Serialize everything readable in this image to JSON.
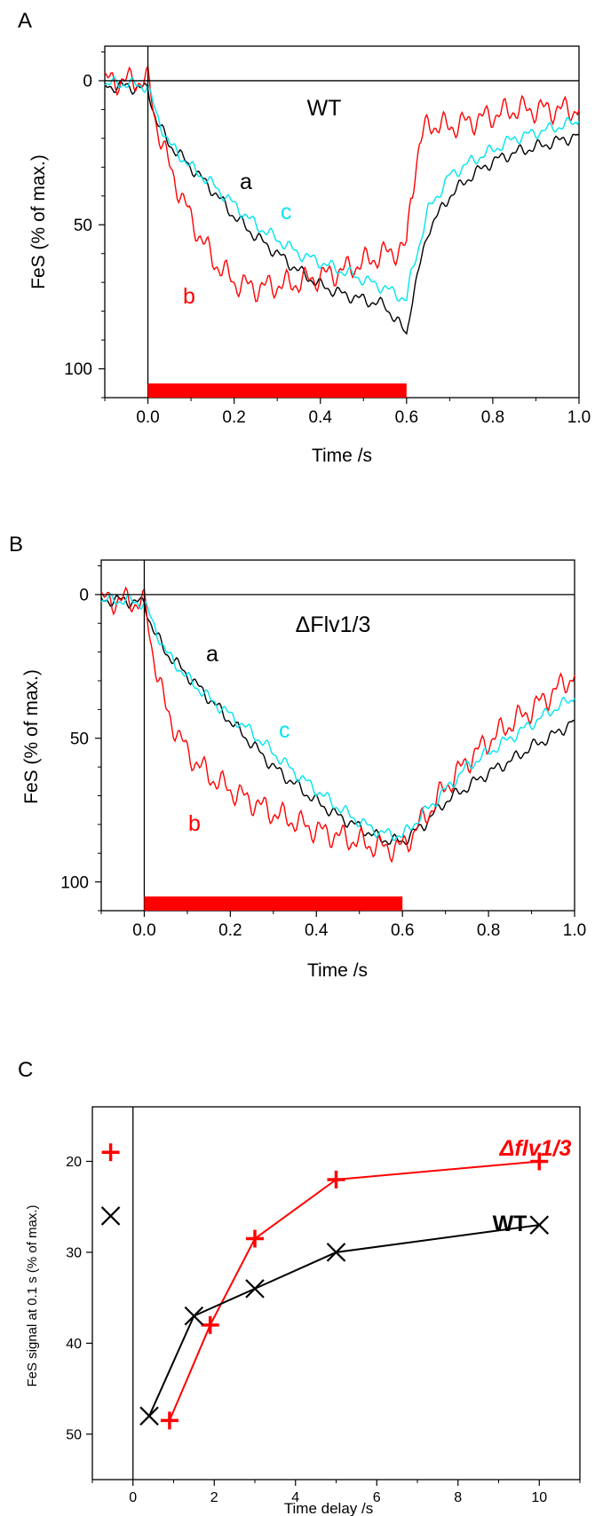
{
  "chart_data": [
    {
      "panel": "A",
      "type": "line",
      "annotation": "WT",
      "xlabel": "Time /s",
      "ylabel": "FeS (% of max.)",
      "xlim": [
        -0.1,
        1.0
      ],
      "ylim": [
        -12,
        110
      ],
      "y_inverted": true,
      "x_ticks": [
        0.0,
        0.2,
        0.4,
        0.6,
        0.8,
        1.0
      ],
      "x_tick_labels": [
        "0.0",
        "0.2",
        "0.4",
        "0.6",
        "0.8",
        "1.0"
      ],
      "y_ticks": [
        0,
        50,
        100
      ],
      "y_tick_labels": [
        "0",
        "50",
        "100"
      ],
      "light_bar": {
        "start": 0.0,
        "end": 0.6,
        "color": "#ff0000"
      },
      "series": [
        {
          "label": "a",
          "color": "#000000",
          "x": [
            -0.1,
            -0.05,
            0.0,
            0.02,
            0.05,
            0.1,
            0.15,
            0.2,
            0.25,
            0.3,
            0.35,
            0.4,
            0.45,
            0.5,
            0.55,
            0.6,
            0.61,
            0.65,
            0.7,
            0.75,
            0.8,
            0.85,
            0.9,
            0.95,
            1.0
          ],
          "y": [
            2,
            2,
            3,
            14,
            22,
            30,
            38,
            47,
            54,
            60,
            66,
            71,
            74,
            76,
            78,
            88,
            78,
            52,
            40,
            33,
            28,
            25,
            23,
            21,
            19
          ]
        },
        {
          "label": "b",
          "color": "#ff0000",
          "x": [
            -0.1,
            -0.05,
            0.0,
            0.02,
            0.05,
            0.1,
            0.15,
            0.2,
            0.25,
            0.3,
            0.35,
            0.4,
            0.45,
            0.5,
            0.55,
            0.6,
            0.61,
            0.63,
            0.65,
            0.7,
            0.75,
            0.8,
            0.85,
            0.9,
            0.95,
            1.0
          ],
          "y": [
            0,
            0,
            0,
            15,
            30,
            48,
            62,
            70,
            72,
            71,
            70,
            68,
            66,
            63,
            60,
            58,
            40,
            22,
            15,
            16,
            14,
            12,
            10,
            10,
            10,
            10
          ]
        },
        {
          "label": "c",
          "color": "#00e5ee",
          "x": [
            -0.1,
            -0.05,
            0.0,
            0.02,
            0.05,
            0.1,
            0.15,
            0.2,
            0.25,
            0.3,
            0.35,
            0.4,
            0.45,
            0.5,
            0.55,
            0.6,
            0.61,
            0.65,
            0.7,
            0.75,
            0.8,
            0.85,
            0.9,
            0.95,
            1.0
          ],
          "y": [
            1,
            1,
            2,
            12,
            22,
            30,
            36,
            43,
            50,
            55,
            60,
            63,
            66,
            69,
            72,
            76,
            68,
            45,
            33,
            28,
            24,
            20,
            18,
            16,
            14
          ]
        }
      ]
    },
    {
      "panel": "B",
      "type": "line",
      "annotation": "ΔFlv1/3",
      "xlabel": "Time /s",
      "ylabel": "FeS (% of max.)",
      "xlim": [
        -0.1,
        1.0
      ],
      "ylim": [
        -12,
        110
      ],
      "y_inverted": true,
      "x_ticks": [
        0.0,
        0.2,
        0.4,
        0.6,
        0.8,
        1.0
      ],
      "x_tick_labels": [
        "0.0",
        "0.2",
        "0.4",
        "0.6",
        "0.8",
        "1.0"
      ],
      "y_ticks": [
        0,
        50,
        100
      ],
      "y_tick_labels": [
        "0",
        "50",
        "100"
      ],
      "light_bar": {
        "start": 0.0,
        "end": 0.6,
        "color": "#ff0000"
      },
      "series": [
        {
          "label": "a",
          "color": "#000000",
          "x": [
            -0.1,
            -0.05,
            0.0,
            0.02,
            0.05,
            0.1,
            0.15,
            0.2,
            0.25,
            0.3,
            0.35,
            0.4,
            0.45,
            0.5,
            0.55,
            0.6,
            0.65,
            0.7,
            0.75,
            0.8,
            0.85,
            0.9,
            0.95,
            1.0
          ],
          "y": [
            2,
            2,
            3,
            12,
            20,
            28,
            36,
            44,
            52,
            60,
            66,
            72,
            77,
            81,
            85,
            86,
            80,
            72,
            67,
            62,
            58,
            53,
            49,
            44
          ]
        },
        {
          "label": "b",
          "color": "#ff0000",
          "x": [
            -0.1,
            -0.05,
            0.0,
            0.02,
            0.05,
            0.1,
            0.15,
            0.2,
            0.25,
            0.3,
            0.35,
            0.4,
            0.45,
            0.5,
            0.55,
            0.6,
            0.65,
            0.7,
            0.75,
            0.8,
            0.85,
            0.9,
            0.95,
            1.0
          ],
          "y": [
            2,
            2,
            3,
            20,
            40,
            55,
            63,
            68,
            72,
            76,
            79,
            82,
            84,
            86,
            88,
            88,
            78,
            67,
            58,
            51,
            45,
            40,
            34,
            28
          ]
        },
        {
          "label": "c",
          "color": "#00e5ee",
          "x": [
            -0.1,
            -0.05,
            0.0,
            0.02,
            0.05,
            0.1,
            0.15,
            0.2,
            0.25,
            0.3,
            0.35,
            0.4,
            0.45,
            0.5,
            0.55,
            0.6,
            0.65,
            0.7,
            0.75,
            0.8,
            0.85,
            0.9,
            0.95,
            1.0
          ],
          "y": [
            2,
            2,
            3,
            10,
            20,
            29,
            36,
            42,
            48,
            55,
            62,
            68,
            74,
            79,
            83,
            84,
            76,
            68,
            60,
            55,
            50,
            45,
            40,
            36
          ]
        }
      ]
    },
    {
      "panel": "C",
      "type": "line",
      "xlabel": "Time delay /s",
      "ylabel": "FeS signal at 0.1 s (% of max.)",
      "xlim": [
        -1,
        11
      ],
      "ylim": [
        14,
        55
      ],
      "y_inverted": true,
      "x_ticks": [
        0,
        2,
        4,
        6,
        8,
        10
      ],
      "x_tick_labels": [
        "0",
        "2",
        "4",
        "6",
        "8",
        "10"
      ],
      "y_ticks": [
        20,
        30,
        40,
        50
      ],
      "y_tick_labels": [
        "20",
        "30",
        "40",
        "50"
      ],
      "series": [
        {
          "label": "Δflv1/3",
          "color": "#ff0000",
          "marker": "+",
          "x": [
            0.9,
            1.9,
            3.0,
            5.0,
            10.0
          ],
          "y": [
            48.5,
            38,
            28.5,
            22,
            20
          ],
          "single_point": {
            "x": -0.55,
            "y": 19
          }
        },
        {
          "label": "WT",
          "color": "#000000",
          "marker": "x",
          "x": [
            0.4,
            1.5,
            3.0,
            5.0,
            10.0
          ],
          "y": [
            48,
            37,
            34,
            30,
            27
          ],
          "single_point": {
            "x": -0.55,
            "y": 26
          }
        }
      ]
    }
  ]
}
